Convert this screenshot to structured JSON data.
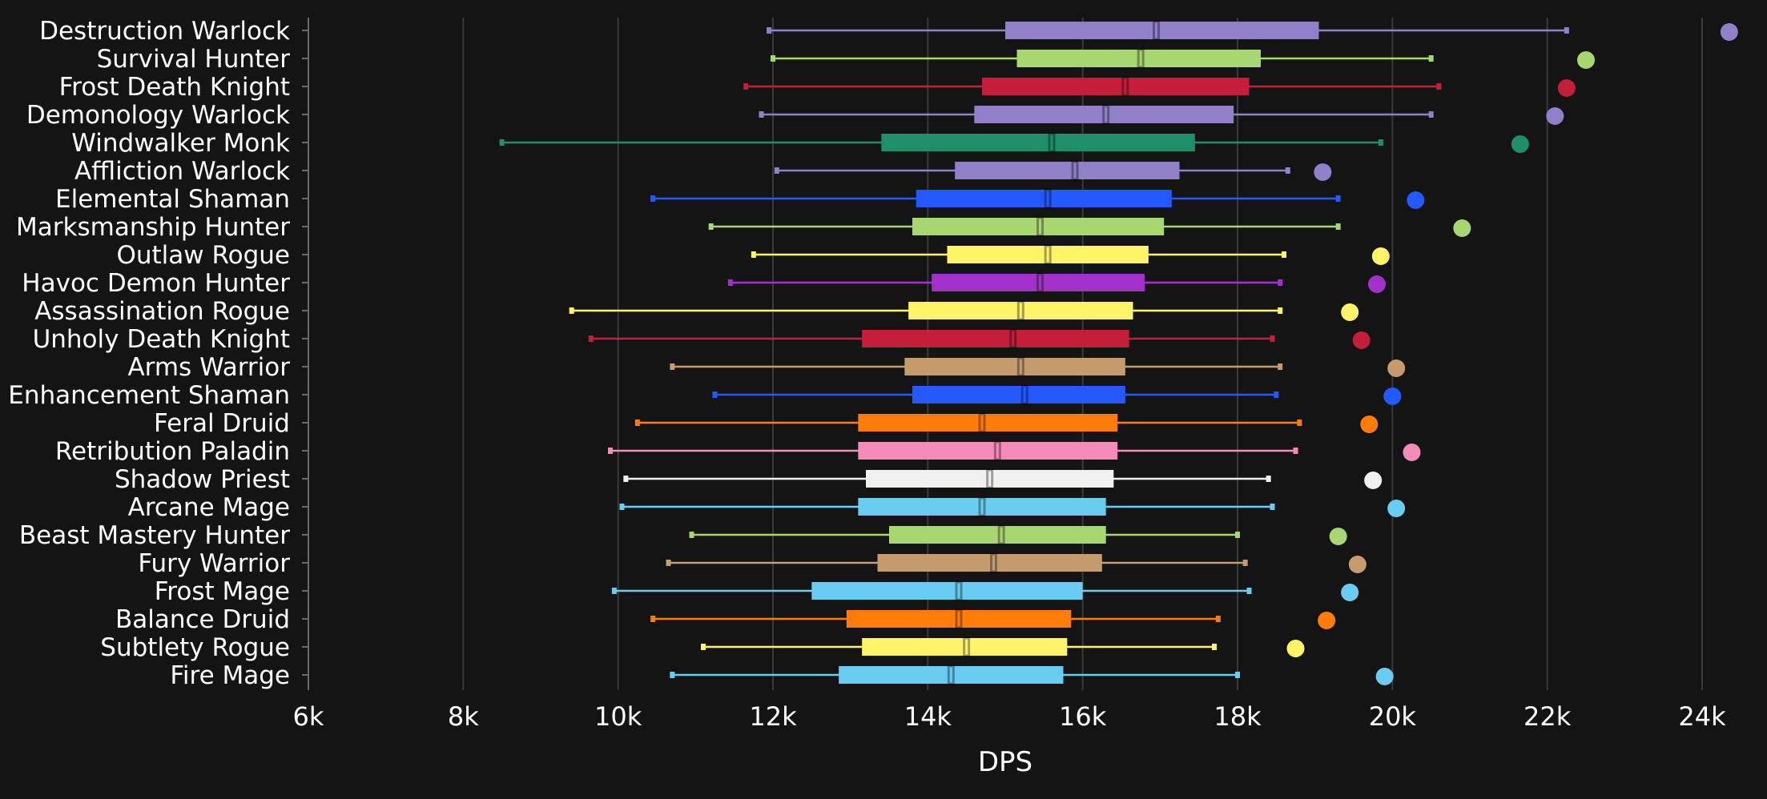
{
  "chart_data": {
    "type": "boxplot",
    "title": "",
    "xlabel": "DPS",
    "ylabel": "",
    "xlim": [
      6000,
      24000
    ],
    "xticks": [
      6000,
      8000,
      10000,
      12000,
      14000,
      16000,
      18000,
      20000,
      22000,
      24000
    ],
    "xtick_labels": [
      "6k",
      "8k",
      "10k",
      "12k",
      "14k",
      "16k",
      "18k",
      "20k",
      "22k",
      "24k"
    ],
    "grid": "vertical",
    "background": "#141414",
    "series": [
      {
        "name": "Destruction Warlock",
        "color": "#8f80c9",
        "min": 11950,
        "q1": 15000,
        "median": 16950,
        "q3": 19050,
        "max": 22250,
        "max_point": 24350
      },
      {
        "name": "Survival Hunter",
        "color": "#a8d670",
        "min": 12000,
        "q1": 15150,
        "median": 16750,
        "q3": 18300,
        "max": 20500,
        "max_point": 22500
      },
      {
        "name": "Frost Death Knight",
        "color": "#c41e3a",
        "min": 11650,
        "q1": 14700,
        "median": 16550,
        "q3": 18150,
        "max": 20600,
        "max_point": 22250
      },
      {
        "name": "Demonology Warlock",
        "color": "#8f80c9",
        "min": 11850,
        "q1": 14600,
        "median": 16300,
        "q3": 17950,
        "max": 20500,
        "max_point": 22100
      },
      {
        "name": "Windwalker Monk",
        "color": "#1f8e6b",
        "min": 8500,
        "q1": 13400,
        "median": 15600,
        "q3": 17450,
        "max": 19850,
        "max_point": 21650
      },
      {
        "name": "Affliction Warlock",
        "color": "#8f80c9",
        "min": 12050,
        "q1": 14350,
        "median": 15900,
        "q3": 17250,
        "max": 18650,
        "max_point": 19100
      },
      {
        "name": "Elemental Shaman",
        "color": "#2459ff",
        "min": 10450,
        "q1": 13850,
        "median": 15550,
        "q3": 17150,
        "max": 19300,
        "max_point": 20300
      },
      {
        "name": "Marksmanship Hunter",
        "color": "#a8d670",
        "min": 11200,
        "q1": 13800,
        "median": 15450,
        "q3": 17050,
        "max": 19300,
        "max_point": 20900
      },
      {
        "name": "Outlaw Rogue",
        "color": "#fff468",
        "min": 11750,
        "q1": 14250,
        "median": 15550,
        "q3": 16850,
        "max": 18600,
        "max_point": 19850
      },
      {
        "name": "Havoc Demon Hunter",
        "color": "#a330c9",
        "min": 11450,
        "q1": 14050,
        "median": 15450,
        "q3": 16800,
        "max": 18550,
        "max_point": 19800
      },
      {
        "name": "Assassination Rogue",
        "color": "#fff468",
        "min": 9400,
        "q1": 13750,
        "median": 15200,
        "q3": 16650,
        "max": 18550,
        "max_point": 19450
      },
      {
        "name": "Unholy Death Knight",
        "color": "#c41e3a",
        "min": 9650,
        "q1": 13150,
        "median": 15100,
        "q3": 16600,
        "max": 18450,
        "max_point": 19600
      },
      {
        "name": "Arms Warrior",
        "color": "#c69b6d",
        "min": 10700,
        "q1": 13700,
        "median": 15200,
        "q3": 16550,
        "max": 18550,
        "max_point": 20050
      },
      {
        "name": "Enhancement Shaman",
        "color": "#2459ff",
        "min": 11250,
        "q1": 13800,
        "median": 15250,
        "q3": 16550,
        "max": 18500,
        "max_point": 20000
      },
      {
        "name": "Feral Druid",
        "color": "#ff7c0a",
        "min": 10250,
        "q1": 13100,
        "median": 14700,
        "q3": 16450,
        "max": 18800,
        "max_point": 19700
      },
      {
        "name": "Retribution Paladin",
        "color": "#f48cba",
        "min": 9900,
        "q1": 13100,
        "median": 14900,
        "q3": 16450,
        "max": 18750,
        "max_point": 20250
      },
      {
        "name": "Shadow Priest",
        "color": "#f0f0f0",
        "min": 10100,
        "q1": 13200,
        "median": 14800,
        "q3": 16400,
        "max": 18400,
        "max_point": 19750
      },
      {
        "name": "Arcane Mage",
        "color": "#69ccf0",
        "min": 10050,
        "q1": 13100,
        "median": 14700,
        "q3": 16300,
        "max": 18450,
        "max_point": 20050
      },
      {
        "name": "Beast Mastery Hunter",
        "color": "#a8d670",
        "min": 10950,
        "q1": 13500,
        "median": 14950,
        "q3": 16300,
        "max": 18000,
        "max_point": 19300
      },
      {
        "name": "Fury Warrior",
        "color": "#c69b6d",
        "min": 10650,
        "q1": 13350,
        "median": 14850,
        "q3": 16250,
        "max": 18100,
        "max_point": 19550
      },
      {
        "name": "Frost Mage",
        "color": "#69ccf0",
        "min": 9950,
        "q1": 12500,
        "median": 14400,
        "q3": 16000,
        "max": 18150,
        "max_point": 19450
      },
      {
        "name": "Balance Druid",
        "color": "#ff7c0a",
        "min": 10450,
        "q1": 12950,
        "median": 14400,
        "q3": 15850,
        "max": 17750,
        "max_point": 19150
      },
      {
        "name": "Subtlety Rogue",
        "color": "#fff468",
        "min": 11100,
        "q1": 13150,
        "median": 14500,
        "q3": 15800,
        "max": 17700,
        "max_point": 18750
      },
      {
        "name": "Fire Mage",
        "color": "#69ccf0",
        "min": 10700,
        "q1": 12850,
        "median": 14300,
        "q3": 15750,
        "max": 18000,
        "max_point": 19900
      }
    ]
  }
}
